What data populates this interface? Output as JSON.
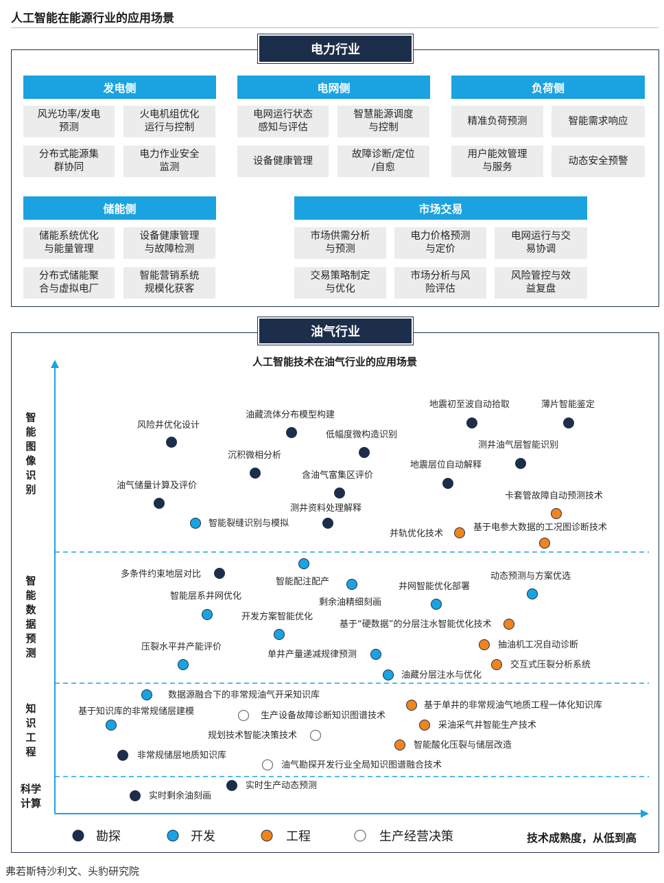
{
  "page": {
    "title": "人工智能在能源行业的应用场景",
    "source": "弗若斯特沙利文、头豹研究院"
  },
  "power": {
    "tab": "电力行业",
    "generation": {
      "title": "发电侧",
      "items": [
        "风光功率/发电\n预测",
        "火电机组优化\n运行与控制",
        "分布式能源集\n群协同",
        "电力作业安全\n监测"
      ]
    },
    "grid": {
      "title": "电网侧",
      "items": [
        "电网运行状态\n感知与评估",
        "智慧能源调度\n与控制",
        "设备健康管理",
        "故障诊断/定位\n/自愈"
      ]
    },
    "load": {
      "title": "负荷侧",
      "items": [
        "精准负荷预测",
        "智能需求响应",
        "用户能效管理\n与服务",
        "动态安全预警"
      ]
    },
    "storage": {
      "title": "储能侧",
      "items": [
        "储能系统优化\n与能量管理",
        "设备健康管理\n与故障检测",
        "分布式储能聚\n合与虚拟电厂",
        "智能营销系统\n规模化获客"
      ]
    },
    "market": {
      "title": "市场交易",
      "items": [
        "市场供需分析\n与预测",
        "电力价格预测\n与定价",
        "电网运行与交\n易协调",
        "交易策略制定\n与优化",
        "市场分析与风\n险评估",
        "风险管控与效\n益复盘"
      ]
    }
  },
  "oil": {
    "tab": "油气行业",
    "chart_title": "人工智能技术在油气行业的应用场景",
    "y_bands": [
      "智\n能\n图\n像\n识\n别",
      "智\n能\n数\n据\n预\n测",
      "知\n识\n工\n程",
      "科学\n计算"
    ],
    "x_axis_label": "技术成熟度，从低到高",
    "legend": [
      {
        "label": "勘探",
        "color": "#1c2e4a",
        "filled": true
      },
      {
        "label": "开发",
        "color": "#1aa3e0",
        "filled": true
      },
      {
        "label": "工程",
        "color": "#f0841e",
        "filled": true
      },
      {
        "label": "生产经营决策",
        "color": "#ffffff",
        "filled": false
      }
    ]
  },
  "chart_data": {
    "type": "scatter",
    "title": "人工智能技术在油气行业的应用场景",
    "xlabel": "技术成熟度，从低到高",
    "ylabel": "",
    "categories_y": [
      "科学计算",
      "知识工程",
      "智能数据预测",
      "智能图像识别"
    ],
    "series_colors": {
      "勘探": "#1c2e4a",
      "开发": "#1aa3e0",
      "工程": "#f0841e",
      "生产经营决策": "#ffffff"
    },
    "points": [
      {
        "label": "风险井优化设计",
        "series": "勘探",
        "band": "智能图像识别"
      },
      {
        "label": "油藏流体分布模型构建",
        "series": "勘探",
        "band": "智能图像识别"
      },
      {
        "label": "低幅度微构造识别",
        "series": "勘探",
        "band": "智能图像识别"
      },
      {
        "label": "沉积微相分析",
        "series": "勘探",
        "band": "智能图像识别"
      },
      {
        "label": "含油气富集区评价",
        "series": "勘探",
        "band": "智能图像识别"
      },
      {
        "label": "油气储量计算及评价",
        "series": "勘探",
        "band": "智能图像识别"
      },
      {
        "label": "测井资料处理解释",
        "series": "勘探",
        "band": "智能图像识别"
      },
      {
        "label": "智能裂缝识别与模拟",
        "series": "开发",
        "band": "智能图像识别"
      },
      {
        "label": "地震初至波自动拾取",
        "series": "勘探",
        "band": "智能图像识别"
      },
      {
        "label": "薄片智能鉴定",
        "series": "勘探",
        "band": "智能图像识别"
      },
      {
        "label": "测井油气层智能识别",
        "series": "勘探",
        "band": "智能图像识别"
      },
      {
        "label": "地震层位自动解释",
        "series": "勘探",
        "band": "智能图像识别"
      },
      {
        "label": "卡套管故障自动预测技术",
        "series": "工程",
        "band": "智能图像识别"
      },
      {
        "label": "并轨优化技术",
        "series": "工程",
        "band": "智能图像识别"
      },
      {
        "label": "基于电参大数据的工况图诊断技术",
        "series": "工程",
        "band": "智能图像识别"
      },
      {
        "label": "多条件约束地层对比",
        "series": "勘探",
        "band": "智能数据预测"
      },
      {
        "label": "智能配注配产",
        "series": "开发",
        "band": "智能数据预测"
      },
      {
        "label": "剩余油精细刻画",
        "series": "开发",
        "band": "智能数据预测"
      },
      {
        "label": "井网智能优化部署",
        "series": "开发",
        "band": "智能数据预测"
      },
      {
        "label": "动态预测与方案优选",
        "series": "开发",
        "band": "智能数据预测"
      },
      {
        "label": "智能层系井网优化",
        "series": "开发",
        "band": "智能数据预测"
      },
      {
        "label": "开发方案智能优化",
        "series": "开发",
        "band": "智能数据预测"
      },
      {
        "label": "基于“硬数据”的分层注水智能优化技术",
        "series": "工程",
        "band": "智能数据预测"
      },
      {
        "label": "抽油机工况自动诊断",
        "series": "工程",
        "band": "智能数据预测"
      },
      {
        "label": "压裂水平井产能评价",
        "series": "开发",
        "band": "智能数据预测"
      },
      {
        "label": "单井产量递减规律预测",
        "series": "开发",
        "band": "智能数据预测"
      },
      {
        "label": "交互式压裂分析系统",
        "series": "工程",
        "band": "智能数据预测"
      },
      {
        "label": "油藏分层注水与优化",
        "series": "开发",
        "band": "智能数据预测"
      },
      {
        "label": "数据源融合下的非常规油气开采知识库",
        "series": "开发",
        "band": "知识工程"
      },
      {
        "label": "基于知识库的非常规储层建模",
        "series": "开发",
        "band": "知识工程"
      },
      {
        "label": "生产设备故障诊断知识图谱技术",
        "series": "生产经营决策",
        "band": "知识工程"
      },
      {
        "label": "基于单井的非常规油气地质工程一体化知识库",
        "series": "工程",
        "band": "知识工程"
      },
      {
        "label": "采油采气井智能生产技术",
        "series": "工程",
        "band": "知识工程"
      },
      {
        "label": "规划技术智能决策技术",
        "series": "生产经营决策",
        "band": "知识工程"
      },
      {
        "label": "智能酸化压裂与储层改造",
        "series": "工程",
        "band": "知识工程"
      },
      {
        "label": "非常规储层地质知识库",
        "series": "勘探",
        "band": "知识工程"
      },
      {
        "label": "油气勘探开发行业全局知识图谱融合技术",
        "series": "生产经营决策",
        "band": "知识工程"
      },
      {
        "label": "实时生产动态预测",
        "series": "勘探",
        "band": "科学计算"
      },
      {
        "label": "实时剩余油刻画",
        "series": "勘探",
        "band": "科学计算"
      }
    ]
  }
}
